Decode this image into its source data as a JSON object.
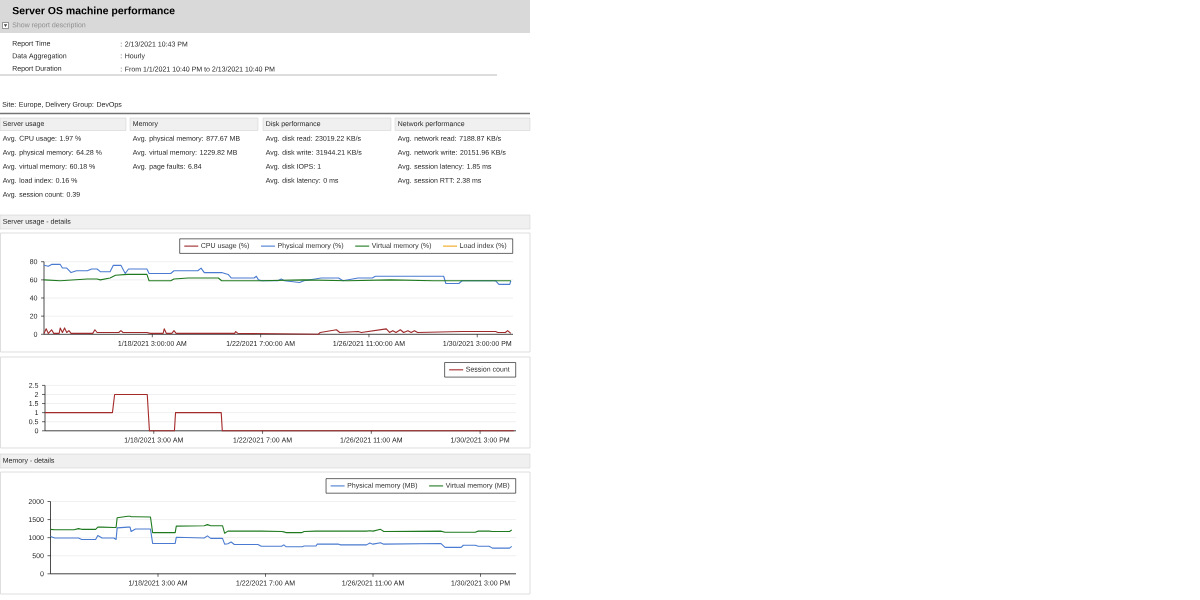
{
  "chart_data": [
    {
      "type": "other",
      "title": "Server OS machine performance",
      "subtitle": "Show report description",
      "annotations": [
        "Report Time",
        ": 2/13/2021 10:43 PM",
        "Data Aggregation",
        ": Hourly",
        "Report Duration",
        ": From 1/1/2021 10:40 PM to 2/13/2021 10:40 PM",
        "Site: Europe, Delivery Group: DevOps"
      ]
    },
    {
      "type": "other",
      "title": "Server usage",
      "annotations": [
        "Avg. CPU usage: 1.97 %",
        "Avg. physical memory: 64.28 %",
        "Avg. virtual memory: 60.18 %",
        "Avg. load index: 0.16 %",
        "Avg. session count: 0.39"
      ]
    },
    {
      "type": "other",
      "title": "Memory",
      "annotations": [
        "Avg. physical memory: 877.67 MB",
        "Avg. virtual memory: 1229.82 MB",
        "Avg. page faults: 6.84"
      ]
    },
    {
      "type": "other",
      "title": "Disk performance",
      "annotations": [
        "Avg. disk read: 23019.22 KB/s",
        "Avg. disk write: 31944.21 KB/s",
        "Avg. disk IOPS: 1",
        "Avg. disk latency: 0 ms"
      ]
    },
    {
      "type": "other",
      "title": "Network performance",
      "annotations": [
        "Avg. network read: 7188.87 KB/s",
        "Avg. network write: 20151.96 KB/s",
        "Avg. session latency: 1.85 ms",
        "Avg. session RTT: 2.38 ms"
      ]
    },
    {
      "type": "line",
      "title": "Server usage - details",
      "xlim": [
        "2021-01-13T23:00",
        "2021-02-01T00:00"
      ],
      "xticks": [
        {
          "value": "2021-01-18T03:00",
          "label": "1/18/2021 3:00:00 AM"
        },
        {
          "value": "2021-01-22T07:00",
          "label": "1/22/2021 7:00:00 AM"
        },
        {
          "value": "2021-01-26T11:00",
          "label": "1/26/2021 11:00:00 AM"
        },
        {
          "value": "2021-01-30T15:00",
          "label": "1/30/2021 3:00:00 PM"
        }
      ],
      "ylim": [
        0,
        80
      ],
      "yticks": [
        0,
        20,
        40,
        60,
        80
      ],
      "grid": "y",
      "legend": "top right",
      "line_style": "solid",
      "series": [
        {
          "name": "CPU usage (%)",
          "color": "#9e2a2b",
          "x": [
            "2021-01-13T23:00",
            "2021-01-14T01:00",
            "2021-01-14T03:00",
            "2021-01-14T06:00",
            "2021-01-14T08:00",
            "2021-01-14T13:00",
            "2021-01-14T14:00",
            "2021-01-14T16:00",
            "2021-01-14T18:00",
            "2021-01-14T20:00",
            "2021-01-14T22:00",
            "2021-01-15T00:00",
            "2021-01-15T20:00",
            "2021-01-15T22:00",
            "2021-01-16T00:00",
            "2021-01-16T20:00",
            "2021-01-16T22:00",
            "2021-01-17T00:00",
            "2021-01-17T22:00",
            "2021-01-18T01:00",
            "2021-01-18T13:00",
            "2021-01-18T14:00",
            "2021-01-18T16:00",
            "2021-01-18T21:00",
            "2021-01-18T23:00",
            "2021-01-19T01:00",
            "2021-01-21T07:00",
            "2021-01-21T08:00",
            "2021-01-21T10:00",
            "2021-01-24T12:00",
            "2021-01-24T14:00",
            "2021-01-25T05:00",
            "2021-01-25T08:00",
            "2021-01-26T01:00",
            "2021-01-26T04:00",
            "2021-01-27T03:00",
            "2021-01-27T06:00",
            "2021-01-27T09:00",
            "2021-01-27T12:00",
            "2021-01-27T16:00",
            "2021-01-27T19:00",
            "2021-01-27T23:00",
            "2021-01-28T02:00",
            "2021-01-28T05:00",
            "2021-01-28T08:00",
            "2021-01-30T01:00",
            "2021-01-31T08:00",
            "2021-01-31T10:00",
            "2021-01-31T17:00",
            "2021-01-31T19:00",
            "2021-01-31T22:00"
          ],
          "values": [
            1,
            6,
            1,
            5,
            1,
            1,
            7,
            2,
            7,
            2,
            4,
            1,
            1,
            5,
            2,
            2,
            4,
            2,
            2,
            1,
            1,
            6,
            1,
            1,
            4,
            1,
            1,
            3,
            1,
            0,
            2,
            5,
            2,
            3,
            2,
            6,
            2,
            4,
            2,
            5,
            2,
            4,
            2,
            4,
            2,
            3,
            3,
            2,
            2,
            4,
            1
          ]
        },
        {
          "name": "Physical memory (%)",
          "color": "#4a7bd0",
          "x": [
            "2021-01-13T23:00",
            "2021-01-14T03:00",
            "2021-01-14T06:00",
            "2021-01-14T14:00",
            "2021-01-14T16:00",
            "2021-01-14T20:00",
            "2021-01-15T00:00",
            "2021-01-15T05:00",
            "2021-01-15T15:00",
            "2021-01-15T19:00",
            "2021-01-16T00:00",
            "2021-01-16T03:00",
            "2021-01-16T12:00",
            "2021-01-16T15:00",
            "2021-01-16T22:00",
            "2021-01-17T02:00",
            "2021-01-17T05:00",
            "2021-01-17T22:00",
            "2021-01-18T00:00",
            "2021-01-18T20:00",
            "2021-01-18T23:00",
            "2021-01-19T21:00",
            "2021-01-20T00:00",
            "2021-01-20T03:00",
            "2021-01-20T19:00",
            "2021-01-21T01:00",
            "2021-01-21T04:00",
            "2021-01-21T07:00",
            "2021-01-22T01:00",
            "2021-01-22T03:00",
            "2021-01-22T05:00",
            "2021-01-22T08:00",
            "2021-01-22T23:00",
            "2021-01-23T02:00",
            "2021-01-23T05:00",
            "2021-01-23T19:00",
            "2021-01-23T23:00",
            "2021-01-24T15:00",
            "2021-01-25T07:00",
            "2021-01-25T11:00",
            "2021-01-26T01:00",
            "2021-01-26T14:00",
            "2021-01-26T17:00",
            "2021-01-27T11:00",
            "2021-01-27T15:00",
            "2021-01-29T08:00",
            "2021-01-29T10:00",
            "2021-01-29T22:00",
            "2021-01-30T01:00",
            "2021-01-31T08:00",
            "2021-01-31T11:00",
            "2021-01-31T21:00",
            "2021-01-31T22:00"
          ],
          "values": [
            76,
            75,
            77,
            77,
            73,
            73,
            68,
            70,
            70,
            72,
            72,
            69,
            69,
            76,
            76,
            67,
            72,
            72,
            67,
            67,
            70,
            70,
            73,
            68,
            68,
            66,
            62,
            62,
            62,
            64,
            60,
            59,
            59,
            61,
            59,
            57,
            59,
            62,
            62,
            59,
            62,
            62,
            64,
            64,
            64,
            64,
            56,
            56,
            59,
            59,
            55,
            55,
            59
          ]
        },
        {
          "name": "Virtual memory (%)",
          "color": "#1f7a1f",
          "x": [
            "2021-01-13T23:00",
            "2021-01-14T14:00",
            "2021-01-15T15:00",
            "2021-01-16T00:00",
            "2021-01-16T03:00",
            "2021-01-16T12:00",
            "2021-01-16T17:00",
            "2021-01-17T04:00",
            "2021-01-17T22:00",
            "2021-01-18T00:00",
            "2021-01-18T20:00",
            "2021-01-18T23:00",
            "2021-01-19T12:00",
            "2021-01-20T16:00",
            "2021-01-20T19:00",
            "2021-01-22T07:00",
            "2021-01-23T23:00",
            "2021-01-25T15:00",
            "2021-01-27T07:00",
            "2021-01-28T23:00",
            "2021-01-30T15:00",
            "2021-01-31T22:00"
          ],
          "values": [
            60,
            59,
            61,
            61,
            60,
            62,
            65,
            66,
            66,
            59,
            59,
            61,
            62,
            62,
            59,
            59,
            60,
            59,
            60,
            59,
            59,
            59
          ]
        },
        {
          "name": "Load index (%)",
          "color": "#f2a81d",
          "values": [
            null
          ]
        }
      ]
    },
    {
      "type": "line",
      "xlim": [
        "2021-01-13T23:00",
        "2021-02-01T00:00"
      ],
      "xticks": [
        {
          "value": "2021-01-18T03:00",
          "label": "1/18/2021 3:00 AM"
        },
        {
          "value": "2021-01-22T07:00",
          "label": "1/22/2021 7:00 AM"
        },
        {
          "value": "2021-01-26T11:00",
          "label": "1/26/2021 11:00 AM"
        },
        {
          "value": "2021-01-30T15:00",
          "label": "1/30/2021 3:00 PM"
        }
      ],
      "ylim": [
        0,
        2.5
      ],
      "yticks": [
        0,
        0.5,
        1,
        1.5,
        2,
        2.5
      ],
      "grid": "y",
      "legend": "top right",
      "line_style": "solid",
      "series": [
        {
          "name": "Session count",
          "color": "#a52a2a",
          "x": [
            "2021-01-13T23:00",
            "2021-01-16T13:00",
            "2021-01-16T15:00",
            "2021-01-17T21:00",
            "2021-01-17T23:00",
            "2021-01-18T22:00",
            "2021-01-18T23:00",
            "2021-01-20T17:00",
            "2021-01-20T18:00",
            "2021-01-31T22:00"
          ],
          "values": [
            1,
            1,
            2,
            2,
            0,
            0,
            1,
            1,
            0,
            0
          ]
        }
      ]
    },
    {
      "type": "line",
      "title": "Memory - details",
      "xlim": [
        "2021-01-13T23:00",
        "2021-02-01T00:00"
      ],
      "xticks": [
        {
          "value": "2021-01-18T03:00",
          "label": "1/18/2021 3:00 AM"
        },
        {
          "value": "2021-01-22T07:00",
          "label": "1/22/2021 7:00 AM"
        },
        {
          "value": "2021-01-26T11:00",
          "label": "1/26/2021 11:00 AM"
        },
        {
          "value": "2021-01-30T15:00",
          "label": "1/30/2021 3:00 PM"
        }
      ],
      "ylim": [
        0,
        2000
      ],
      "yticks": [
        0,
        500,
        1000,
        1500,
        2000
      ],
      "grid": "y",
      "legend": "top right",
      "line_style": "solid",
      "x": [
        "2021-01-13T23:00",
        "2021-01-14T03:00",
        "2021-01-14T21:00",
        "2021-01-15T01:00",
        "2021-01-15T04:00",
        "2021-01-15T17:00",
        "2021-01-15T19:00",
        "2021-01-15T23:00",
        "2021-01-16T10:00",
        "2021-01-16T12:00",
        "2021-01-16T13:00",
        "2021-01-16T23:00",
        "2021-01-17T01:00",
        "2021-01-17T02:00",
        "2021-01-17T06:00",
        "2021-01-17T20:00",
        "2021-01-17T22:00",
        "2021-01-18T19:00",
        "2021-01-18T20:00",
        "2021-01-19T22:00",
        "2021-01-20T01:00",
        "2021-01-20T04:00",
        "2021-01-20T15:00",
        "2021-01-20T17:00",
        "2021-01-20T20:00",
        "2021-01-20T23:00",
        "2021-01-21T02:00",
        "2021-01-22T00:00",
        "2021-01-22T03:00",
        "2021-01-22T22:00",
        "2021-01-23T00:00",
        "2021-01-23T02:00",
        "2021-01-23T17:00",
        "2021-01-23T19:00",
        "2021-01-24T06:00",
        "2021-01-24T07:00",
        "2021-01-25T03:00",
        "2021-01-25T05:00",
        "2021-01-26T05:00",
        "2021-01-26T08:00",
        "2021-01-26T11:00",
        "2021-01-26T18:00",
        "2021-01-26T21:00",
        "2021-01-29T02:00",
        "2021-01-29T06:00",
        "2021-01-29T21:00",
        "2021-01-29T23:00",
        "2021-01-30T10:00",
        "2021-01-30T13:00",
        "2021-01-30T23:00",
        "2021-01-31T02:00",
        "2021-01-31T18:00",
        "2021-01-31T20:00"
      ],
      "series": [
        {
          "name": "Physical memory (MB)",
          "color": "#4a7bd0",
          "values": [
            1030,
            990,
            990,
            990,
            950,
            950,
            1060,
            990,
            990,
            950,
            1270,
            1290,
            1290,
            1170,
            1240,
            1240,
            840,
            840,
            1010,
            990,
            1050,
            980,
            980,
            820,
            830,
            880,
            810,
            810,
            760,
            760,
            800,
            750,
            750,
            770,
            770,
            820,
            820,
            800,
            800,
            850,
            820,
            860,
            820,
            840,
            730,
            730,
            790,
            790,
            760,
            760,
            710,
            710,
            760
          ]
        },
        {
          "name": "Virtual memory (MB)",
          "color": "#1f7a1f",
          "values": [
            1230,
            1220,
            1220,
            1250,
            1230,
            1230,
            1290,
            1290,
            1280,
            1280,
            1550,
            1590,
            1590,
            1580,
            1580,
            1570,
            1140,
            1140,
            1320,
            1330,
            1360,
            1330,
            1330,
            1120,
            1180,
            1180,
            1180,
            1180,
            1180,
            1170,
            1160,
            1140,
            1140,
            1170,
            1180,
            1180,
            1180,
            1180,
            1180,
            1190,
            1180,
            1230,
            1170,
            1180,
            1150,
            1150,
            1150,
            1150,
            1180,
            1180,
            1170,
            1170,
            1210
          ]
        }
      ]
    }
  ]
}
